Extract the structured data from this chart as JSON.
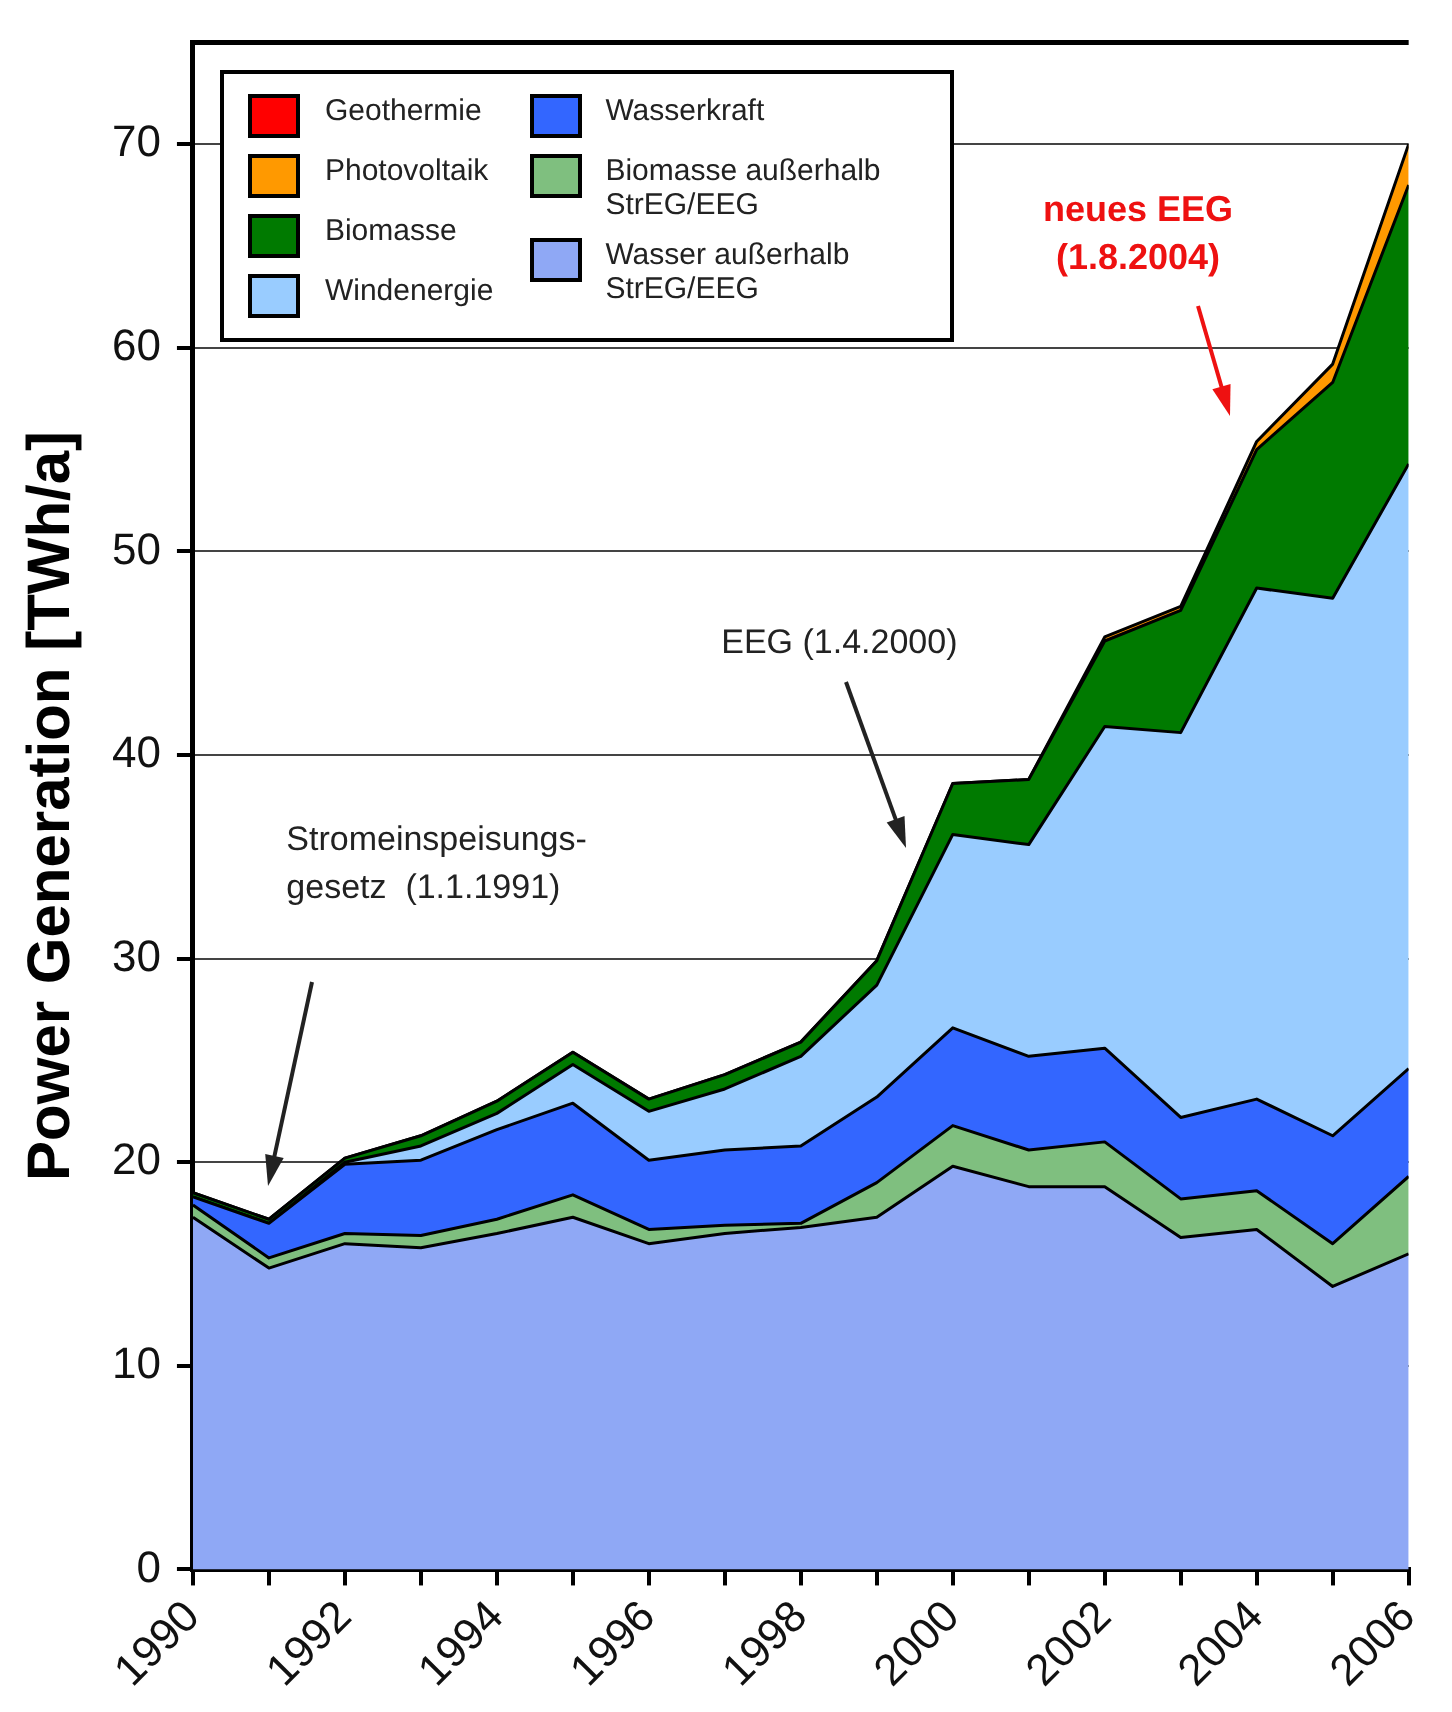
{
  "chart_data": {
    "type": "area",
    "stacked": true,
    "ylabel": "Power Generation [TWh/a]",
    "x": [
      1990,
      1991,
      1992,
      1993,
      1994,
      1995,
      1996,
      1997,
      1998,
      1999,
      2000,
      2001,
      2002,
      2003,
      2004,
      2005,
      2006
    ],
    "series": [
      {
        "name": "Wasser außerhalb StrEG/EEG",
        "color": "#8fa8f5",
        "values": [
          17.3,
          14.8,
          16.0,
          15.8,
          16.5,
          17.3,
          16.0,
          16.5,
          16.8,
          17.3,
          19.8,
          18.8,
          18.8,
          16.3,
          16.7,
          13.9,
          15.5
        ]
      },
      {
        "name": "Biomasse außerhalb StrEG/EEG",
        "color": "#7fbf7f",
        "values": [
          0.6,
          0.5,
          0.5,
          0.6,
          0.7,
          1.1,
          0.7,
          0.4,
          0.2,
          1.7,
          2.0,
          1.8,
          2.2,
          1.9,
          1.9,
          2.1,
          3.8
        ]
      },
      {
        "name": "Wasserkraft",
        "color": "#3366ff",
        "values": [
          0.4,
          1.7,
          3.4,
          3.7,
          4.4,
          4.5,
          3.4,
          3.7,
          3.8,
          4.2,
          4.8,
          4.6,
          4.6,
          4.0,
          4.5,
          5.3,
          5.3
        ]
      },
      {
        "name": "Windenergie",
        "color": "#99ccff",
        "values": [
          0,
          0,
          0.1,
          0.7,
          0.8,
          1.9,
          2.4,
          3.0,
          4.4,
          5.5,
          9.5,
          10.4,
          15.8,
          18.9,
          25.1,
          26.4,
          29.7
        ]
      },
      {
        "name": "Biomasse",
        "color": "#007a00",
        "values": [
          0.2,
          0.2,
          0.2,
          0.5,
          0.6,
          0.6,
          0.6,
          0.7,
          0.7,
          1.2,
          2.5,
          3.2,
          4.2,
          6.0,
          6.8,
          10.6,
          13.7
        ]
      },
      {
        "name": "Photovoltaik",
        "color": "#ff9900",
        "values": [
          0,
          0,
          0,
          0,
          0,
          0,
          0,
          0,
          0,
          0,
          0,
          0,
          0.2,
          0.2,
          0.4,
          0.9,
          2.0
        ]
      },
      {
        "name": "Geothermie",
        "color": "#ff0000",
        "values": [
          null,
          null,
          null,
          null,
          null,
          null,
          null,
          null,
          null,
          null,
          null,
          null,
          null,
          null,
          null,
          null,
          null
        ]
      }
    ],
    "xlim": [
      1990,
      2006
    ],
    "xticks": [
      1990,
      {
        "value": 1991,
        "label": null
      },
      1992,
      {
        "value": 1993,
        "label": null
      },
      1994,
      {
        "value": 1995,
        "label": null
      },
      1996,
      {
        "value": 1997,
        "label": null
      },
      1998,
      {
        "value": 1999,
        "label": null
      },
      2000,
      {
        "value": 2001,
        "label": null
      },
      2002,
      {
        "value": 2003,
        "label": null
      },
      2004,
      {
        "value": 2005,
        "label": null
      },
      2006
    ],
    "ylim": [
      0,
      75
    ],
    "yticks": [
      0,
      10,
      20,
      30,
      40,
      50,
      60,
      70
    ],
    "grid": "y",
    "legend": "top left",
    "annotations": [
      "Stromeinspeisungs-\ngesetz  (1.1.1991)",
      "EEG (1.4.2000)",
      "neues EEG\n(1.8.2004)"
    ]
  }
}
